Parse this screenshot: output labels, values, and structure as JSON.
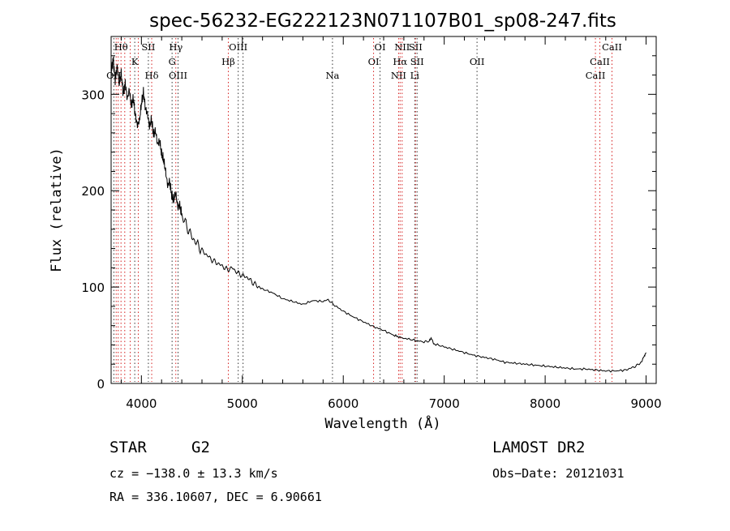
{
  "chart_data": {
    "type": "line",
    "title": "spec-56232-EG222123N071107B01_sp08-247.fits",
    "xlabel": "Wavelength (Å)",
    "ylabel": "Flux (relative)",
    "xlim": [
      3700,
      9100
    ],
    "ylim": [
      0,
      360
    ],
    "xticks": [
      4000,
      5000,
      6000,
      7000,
      8000,
      9000
    ],
    "yticks": [
      0,
      100,
      200,
      300
    ],
    "grid": false,
    "series": [
      {
        "x": [
          3700,
          3720,
          3740,
          3760,
          3780,
          3800,
          3820,
          3840,
          3860,
          3880,
          3900,
          3920,
          3940,
          3960,
          3980,
          4000,
          4020,
          4040,
          4060,
          4080,
          4100,
          4120,
          4140,
          4160,
          4180,
          4200,
          4220,
          4240,
          4260,
          4280,
          4300,
          4320,
          4340,
          4360,
          4380,
          4400,
          4450,
          4500,
          4550,
          4600,
          4650,
          4700,
          4750,
          4800,
          4850,
          4900,
          4950,
          5000,
          5050,
          5100,
          5150,
          5200,
          5300,
          5400,
          5500,
          5600,
          5700,
          5800,
          5850,
          5900,
          6000,
          6100,
          6200,
          6300,
          6400,
          6500,
          6560,
          6600,
          6700,
          6800,
          6850,
          6870,
          6900,
          7000,
          7100,
          7200,
          7300,
          7400,
          7500,
          7600,
          7700,
          7800,
          7900,
          8000,
          8100,
          8200,
          8300,
          8400,
          8500,
          8600,
          8700,
          8800,
          8850,
          8900,
          8950,
          8980,
          9000
        ],
        "y": [
          320,
          338,
          315,
          330,
          310,
          322,
          300,
          312,
          295,
          305,
          288,
          296,
          278,
          268,
          272,
          290,
          302,
          285,
          280,
          266,
          274,
          258,
          262,
          248,
          252,
          238,
          232,
          220,
          205,
          210,
          195,
          190,
          198,
          183,
          185,
          175,
          163,
          152,
          145,
          138,
          133,
          128,
          125,
          122,
          118,
          120,
          115,
          112,
          110,
          105,
          101,
          98,
          94,
          88,
          85,
          82,
          86,
          85,
          87,
          82,
          75,
          69,
          64,
          59,
          55,
          50,
          48,
          47,
          45,
          43,
          44,
          47,
          41,
          38,
          35,
          32,
          29,
          27,
          25,
          22,
          21,
          20,
          19,
          18,
          17,
          16,
          15,
          15,
          14,
          13,
          13,
          14,
          16,
          18,
          22,
          28,
          32
        ]
      }
    ],
    "line_labels": [
      {
        "text": "Hθ",
        "x": 3798,
        "row": 1,
        "color": "red"
      },
      {
        "text": "K",
        "x": 3934,
        "row": 2,
        "color": "black"
      },
      {
        "text": "SII",
        "x": 4069,
        "row": 1,
        "color": "black"
      },
      {
        "text": "Hδ",
        "x": 4102,
        "row": 3,
        "color": "red"
      },
      {
        "text": "Hγ",
        "x": 4341,
        "row": 1,
        "color": "red"
      },
      {
        "text": "G",
        "x": 4304,
        "row": 2,
        "color": "black"
      },
      {
        "text": "OIII",
        "x": 4363,
        "row": 3,
        "color": "black"
      },
      {
        "text": "OIII",
        "x": 4959,
        "row": 1,
        "color": "black"
      },
      {
        "text": "Hβ",
        "x": 4861,
        "row": 2,
        "color": "red"
      },
      {
        "text": "Na",
        "x": 5893,
        "row": 3,
        "color": "black"
      },
      {
        "text": "OI",
        "x": 6364,
        "row": 1,
        "color": "black"
      },
      {
        "text": "OI",
        "x": 6300,
        "row": 2,
        "color": "black"
      },
      {
        "text": "NII",
        "x": 6583,
        "row": 1,
        "color": "red"
      },
      {
        "text": "SII",
        "x": 6716,
        "row": 1,
        "color": "black"
      },
      {
        "text": "Hα",
        "x": 6563,
        "row": 2,
        "color": "red"
      },
      {
        "text": "SII",
        "x": 6731,
        "row": 2,
        "color": "black"
      },
      {
        "text": "NII",
        "x": 6548,
        "row": 3,
        "color": "red"
      },
      {
        "text": "Li",
        "x": 6708,
        "row": 3,
        "color": "black"
      },
      {
        "text": "OII",
        "x": 7325,
        "row": 2,
        "color": "black"
      },
      {
        "text": "CaII",
        "x": 8662,
        "row": 1,
        "color": "red"
      },
      {
        "text": "CaII",
        "x": 8542,
        "row": 2,
        "color": "red"
      },
      {
        "text": "CaII",
        "x": 8498,
        "row": 3,
        "color": "red"
      },
      {
        "text": "OII",
        "x": 3727,
        "row": 3,
        "color": "black"
      }
    ],
    "line_markers": [
      {
        "x": 3727,
        "color": "black"
      },
      {
        "x": 3750,
        "color": "red"
      },
      {
        "x": 3770,
        "color": "red"
      },
      {
        "x": 3798,
        "color": "red"
      },
      {
        "x": 3835,
        "color": "red"
      },
      {
        "x": 3889,
        "color": "red"
      },
      {
        "x": 3934,
        "color": "black"
      },
      {
        "x": 3969,
        "color": "red"
      },
      {
        "x": 4069,
        "color": "black"
      },
      {
        "x": 4102,
        "color": "red"
      },
      {
        "x": 4304,
        "color": "black"
      },
      {
        "x": 4341,
        "color": "red"
      },
      {
        "x": 4363,
        "color": "black"
      },
      {
        "x": 4861,
        "color": "red"
      },
      {
        "x": 4959,
        "color": "black"
      },
      {
        "x": 5007,
        "color": "black"
      },
      {
        "x": 5893,
        "color": "black"
      },
      {
        "x": 6300,
        "color": "red"
      },
      {
        "x": 6364,
        "color": "black"
      },
      {
        "x": 6548,
        "color": "red"
      },
      {
        "x": 6563,
        "color": "red"
      },
      {
        "x": 6583,
        "color": "red"
      },
      {
        "x": 6708,
        "color": "black"
      },
      {
        "x": 6716,
        "color": "red"
      },
      {
        "x": 6731,
        "color": "black"
      },
      {
        "x": 7325,
        "color": "black"
      },
      {
        "x": 8498,
        "color": "red"
      },
      {
        "x": 8542,
        "color": "red"
      },
      {
        "x": 8662,
        "color": "red"
      }
    ]
  },
  "info": {
    "class_label": "STAR",
    "subclass": "G2",
    "survey": "LAMOST DR2",
    "cz": "cz = −138.0 ± 13.3 km/s",
    "obs_date": "Obs−Date: 20121031",
    "radec": "RA = 336.10607, DEC =   6.90661"
  }
}
